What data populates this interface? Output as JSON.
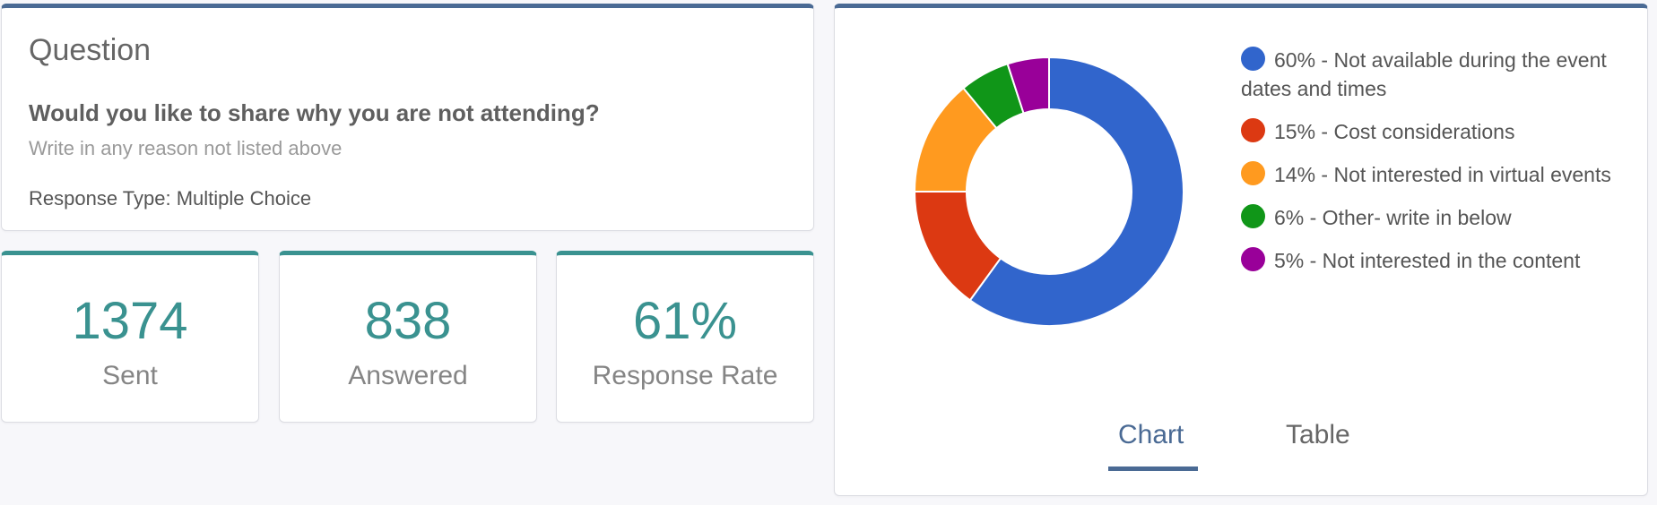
{
  "question": {
    "heading": "Question",
    "text": "Would you like to share why you are not attending?",
    "subtext": "Write in any reason not listed above",
    "response_type": "Response Type: Multiple Choice"
  },
  "stats": {
    "sent": {
      "value": "1374",
      "label": "Sent"
    },
    "answered": {
      "value": "838",
      "label": "Answered"
    },
    "rate": {
      "value": "61%",
      "label": "Response Rate"
    }
  },
  "tabs": {
    "chart": "Chart",
    "table": "Table",
    "active": "chart"
  },
  "colors": {
    "accent_blue": "#4a6a94",
    "accent_teal": "#3a9290"
  },
  "chart_data": {
    "type": "pie",
    "style": "donut",
    "categories": [
      "60% - Not available during the event dates and times",
      "15% - Cost considerations",
      "14% - Not interested in virtual events",
      "6% - Other- write in below",
      "5% - Not interested in the content"
    ],
    "values": [
      60,
      15,
      14,
      6,
      5
    ],
    "colors": [
      "#3165cc",
      "#dc3912",
      "#ff9a1f",
      "#109618",
      "#990099"
    ],
    "legend_position": "right"
  }
}
